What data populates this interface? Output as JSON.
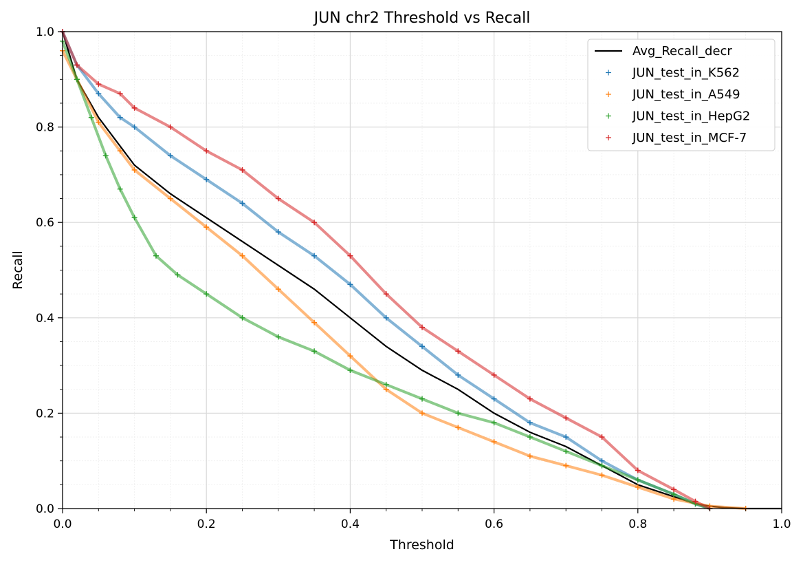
{
  "chart_data": {
    "type": "line",
    "title": "JUN chr2 Threshold vs Recall",
    "xlabel": "Threshold",
    "ylabel": "Recall",
    "xlim": [
      0,
      1
    ],
    "ylim": [
      0,
      1
    ],
    "xticks": [
      "0.0",
      "0.2",
      "0.4",
      "0.6",
      "0.8",
      "1.0"
    ],
    "yticks": [
      "0.0",
      "0.2",
      "0.4",
      "0.6",
      "0.8",
      "1.0"
    ],
    "grid": true,
    "legend_position": "top-right",
    "series": [
      {
        "name": "Avg_Recall_decr",
        "style": "line",
        "color": "#000000",
        "x": [
          0.0,
          0.02,
          0.05,
          0.08,
          0.1,
          0.15,
          0.2,
          0.25,
          0.3,
          0.35,
          0.4,
          0.45,
          0.5,
          0.55,
          0.6,
          0.65,
          0.7,
          0.75,
          0.8,
          0.85,
          0.88,
          0.9,
          0.92,
          0.95,
          1.0
        ],
        "y": [
          1.0,
          0.9,
          0.82,
          0.76,
          0.72,
          0.66,
          0.61,
          0.56,
          0.51,
          0.46,
          0.4,
          0.34,
          0.29,
          0.25,
          0.2,
          0.16,
          0.13,
          0.09,
          0.05,
          0.025,
          0.01,
          0.005,
          0.002,
          0.0,
          0.0
        ]
      },
      {
        "name": "JUN_test_in_K562",
        "style": "scatter",
        "color": "#1f77b4",
        "x": [
          0.0,
          0.02,
          0.05,
          0.08,
          0.1,
          0.15,
          0.2,
          0.25,
          0.3,
          0.35,
          0.4,
          0.45,
          0.5,
          0.55,
          0.6,
          0.65,
          0.7,
          0.75,
          0.8,
          0.85,
          0.88,
          0.9
        ],
        "y": [
          1.0,
          0.93,
          0.87,
          0.82,
          0.8,
          0.74,
          0.69,
          0.64,
          0.58,
          0.53,
          0.47,
          0.4,
          0.34,
          0.28,
          0.23,
          0.18,
          0.15,
          0.1,
          0.06,
          0.03,
          0.01,
          0.0
        ]
      },
      {
        "name": "JUN_test_in_A549",
        "style": "scatter",
        "color": "#ff7f0e",
        "x": [
          0.0,
          0.02,
          0.05,
          0.08,
          0.1,
          0.15,
          0.2,
          0.25,
          0.3,
          0.35,
          0.4,
          0.45,
          0.5,
          0.55,
          0.6,
          0.65,
          0.7,
          0.75,
          0.8,
          0.85,
          0.9,
          0.95
        ],
        "y": [
          0.96,
          0.9,
          0.81,
          0.75,
          0.71,
          0.65,
          0.59,
          0.53,
          0.46,
          0.39,
          0.32,
          0.25,
          0.2,
          0.17,
          0.14,
          0.11,
          0.09,
          0.07,
          0.045,
          0.02,
          0.005,
          0.0
        ]
      },
      {
        "name": "JUN_test_in_HepG2",
        "style": "scatter",
        "color": "#2ca02c",
        "x": [
          0.0,
          0.02,
          0.04,
          0.06,
          0.08,
          0.1,
          0.13,
          0.16,
          0.2,
          0.25,
          0.3,
          0.35,
          0.4,
          0.45,
          0.5,
          0.55,
          0.6,
          0.65,
          0.7,
          0.75,
          0.8,
          0.85,
          0.88,
          0.9
        ],
        "y": [
          0.98,
          0.9,
          0.82,
          0.74,
          0.67,
          0.61,
          0.53,
          0.49,
          0.45,
          0.4,
          0.36,
          0.33,
          0.29,
          0.26,
          0.23,
          0.2,
          0.18,
          0.15,
          0.12,
          0.09,
          0.06,
          0.03,
          0.01,
          0.0
        ]
      },
      {
        "name": "JUN_test_in_MCF-7",
        "style": "scatter",
        "color": "#d62728",
        "x": [
          0.0,
          0.02,
          0.05,
          0.08,
          0.1,
          0.15,
          0.2,
          0.25,
          0.3,
          0.35,
          0.4,
          0.45,
          0.5,
          0.55,
          0.6,
          0.65,
          0.7,
          0.75,
          0.8,
          0.85,
          0.88,
          0.9
        ],
        "y": [
          1.0,
          0.93,
          0.89,
          0.87,
          0.84,
          0.8,
          0.75,
          0.71,
          0.65,
          0.6,
          0.53,
          0.45,
          0.38,
          0.33,
          0.28,
          0.23,
          0.19,
          0.15,
          0.08,
          0.04,
          0.015,
          0.0
        ]
      }
    ]
  }
}
